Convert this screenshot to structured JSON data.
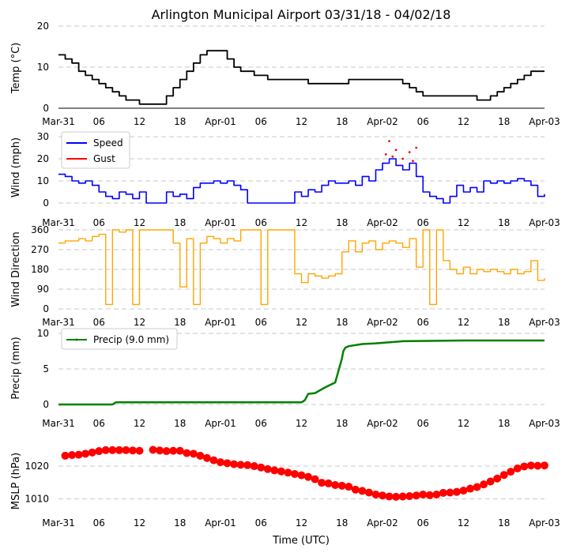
{
  "title": "Arlington Municipal Airport 03/31/18 - 04/02/18",
  "xlabel": "Time (UTC)",
  "x_ticks": [
    "Mar-31",
    "06",
    "12",
    "18",
    "Apr-01",
    "06",
    "12",
    "18",
    "Apr-02",
    "06",
    "12",
    "18",
    "Apr-03"
  ],
  "colors": {
    "temp": "#000000",
    "speed": "#0000ff",
    "gust": "#ff0000",
    "dir": "#ffa500",
    "precip": "#008000",
    "mslp": "#ff0000",
    "grid": "#c8c8c8"
  },
  "chart_data": [
    {
      "type": "line",
      "name": "temperature",
      "ylabel": "Temp ($^\\circ$C)",
      "ylabel_text": "Temp (°C)",
      "ylim": [
        0,
        20
      ],
      "yticks": [
        "0",
        "10",
        "20"
      ],
      "series": [
        {
          "name": "Temperature",
          "x_hours": [
            0,
            1,
            2,
            3,
            4,
            5,
            6,
            7,
            8,
            9,
            10,
            11,
            12,
            13,
            14,
            15,
            16,
            17,
            18,
            19,
            20,
            21,
            22,
            23,
            24,
            25,
            26,
            27,
            28,
            29,
            30,
            31,
            32,
            33,
            34,
            35,
            36,
            37,
            38,
            39,
            40,
            41,
            42,
            43,
            44,
            45,
            46,
            47,
            48,
            49,
            50,
            51,
            52,
            53,
            54,
            55,
            56,
            57,
            58,
            59,
            60,
            61,
            62,
            63,
            64,
            65,
            66,
            67,
            68,
            69,
            70,
            71,
            72
          ],
          "values": [
            13,
            12,
            11,
            9,
            8,
            7,
            6,
            5,
            4,
            3,
            2,
            2,
            1,
            1,
            1,
            1,
            3,
            5,
            7,
            9,
            11,
            13,
            14,
            14,
            14,
            12,
            10,
            9,
            9,
            8,
            8,
            7,
            7,
            7,
            7,
            7,
            7,
            6,
            6,
            6,
            6,
            6,
            6,
            7,
            7,
            7,
            7,
            7,
            7,
            7,
            7,
            6,
            5,
            4,
            3,
            3,
            3,
            3,
            3,
            3,
            3,
            3,
            2,
            2,
            3,
            4,
            5,
            6,
            7,
            8,
            9,
            9,
            9
          ]
        }
      ]
    },
    {
      "type": "line",
      "name": "wind",
      "ylabel": "Wind (mph)",
      "ylim": [
        0,
        30
      ],
      "yticks": [
        "0",
        "10",
        "20",
        "30"
      ],
      "legend": [
        "Speed",
        "Gust"
      ],
      "legend_position": "upper-left",
      "series": [
        {
          "name": "Speed",
          "x_hours": [
            0,
            1,
            2,
            3,
            4,
            5,
            6,
            7,
            8,
            9,
            10,
            11,
            12,
            13,
            14,
            15,
            16,
            17,
            18,
            19,
            20,
            21,
            22,
            23,
            24,
            25,
            26,
            27,
            28,
            29,
            30,
            31,
            32,
            33,
            34,
            35,
            36,
            37,
            38,
            39,
            40,
            41,
            42,
            43,
            44,
            45,
            46,
            47,
            48,
            49,
            50,
            51,
            52,
            53,
            54,
            55,
            56,
            57,
            58,
            59,
            60,
            61,
            62,
            63,
            64,
            65,
            66,
            67,
            68,
            69,
            70,
            71,
            72
          ],
          "values": [
            13,
            12,
            10,
            9,
            10,
            8,
            5,
            3,
            2,
            5,
            4,
            2,
            5,
            0,
            0,
            0,
            5,
            3,
            4,
            2,
            7,
            9,
            9,
            10,
            9,
            10,
            8,
            6,
            0,
            0,
            0,
            0,
            0,
            0,
            0,
            5,
            3,
            6,
            5,
            8,
            10,
            9,
            9,
            10,
            8,
            12,
            10,
            15,
            18,
            20,
            17,
            15,
            18,
            12,
            5,
            3,
            2,
            0,
            3,
            8,
            5,
            7,
            5,
            10,
            9,
            10,
            9,
            10,
            11,
            10,
            8,
            3,
            4
          ]
        },
        {
          "name": "Gust",
          "points": [
            [
              48.5,
              22
            ],
            [
              49,
              28
            ],
            [
              49.5,
              21
            ],
            [
              50,
              24
            ],
            [
              51,
              20
            ],
            [
              52,
              23
            ],
            [
              52.5,
              19
            ],
            [
              53,
              25
            ]
          ]
        }
      ]
    },
    {
      "type": "line",
      "name": "wind_direction",
      "ylabel": "Wind Direction",
      "ylim": [
        0,
        360
      ],
      "yticks": [
        "0",
        "90",
        "180",
        "270",
        "360"
      ],
      "series": [
        {
          "name": "Direction",
          "x_hours": [
            0,
            1,
            2,
            3,
            4,
            5,
            6,
            7,
            8,
            9,
            10,
            11,
            12,
            13,
            14,
            15,
            16,
            17,
            18,
            19,
            20,
            21,
            22,
            23,
            24,
            25,
            26,
            27,
            28,
            29,
            30,
            31,
            32,
            33,
            34,
            35,
            36,
            37,
            38,
            39,
            40,
            41,
            42,
            43,
            44,
            45,
            46,
            47,
            48,
            49,
            50,
            51,
            52,
            53,
            54,
            55,
            56,
            57,
            58,
            59,
            60,
            61,
            62,
            63,
            64,
            65,
            66,
            67,
            68,
            69,
            70,
            71,
            72
          ],
          "values": [
            300,
            310,
            310,
            320,
            310,
            330,
            340,
            20,
            360,
            350,
            360,
            20,
            360,
            360,
            360,
            360,
            360,
            300,
            100,
            320,
            20,
            300,
            330,
            320,
            300,
            320,
            310,
            360,
            360,
            360,
            20,
            360,
            360,
            360,
            360,
            160,
            120,
            160,
            150,
            140,
            150,
            160,
            260,
            310,
            260,
            300,
            310,
            270,
            300,
            310,
            300,
            280,
            320,
            190,
            360,
            20,
            360,
            220,
            180,
            160,
            190,
            160,
            180,
            170,
            180,
            170,
            160,
            180,
            160,
            170,
            220,
            130,
            140
          ]
        }
      ]
    },
    {
      "type": "line",
      "name": "precipitation",
      "ylabel": "Precip (mm)",
      "ylim": [
        0,
        10
      ],
      "yticks": [
        "0",
        "5",
        "10"
      ],
      "legend": [
        "Precip (9.0 mm)"
      ],
      "legend_position": "upper-left",
      "series": [
        {
          "name": "Precip (9.0 mm)",
          "x_hours": [
            0,
            8,
            8.5,
            36,
            36.5,
            37,
            38,
            39.5,
            41,
            42,
            42.2,
            42.5,
            43,
            45,
            47,
            51,
            60,
            72
          ],
          "values": [
            0,
            0,
            0.3,
            0.3,
            0.6,
            1.5,
            1.6,
            2.4,
            3.1,
            6.5,
            7.5,
            8.0,
            8.2,
            8.5,
            8.6,
            8.9,
            9.0,
            9.0
          ]
        }
      ]
    },
    {
      "type": "scatter",
      "name": "mslp",
      "ylabel": "MSLP (hPa)",
      "ylim": [
        1005,
        1028
      ],
      "yticks": [
        "1010",
        "1020"
      ],
      "series": [
        {
          "name": "MSLP",
          "x_hours": [
            1,
            2,
            3,
            4,
            5,
            6,
            7,
            8,
            9,
            10,
            11,
            12,
            14,
            15,
            16,
            17,
            18,
            19,
            20,
            21,
            22,
            23,
            24,
            25,
            26,
            27,
            28,
            29,
            30,
            31,
            32,
            33,
            34,
            35,
            36,
            37,
            38,
            39,
            40,
            41,
            42,
            43,
            44,
            45,
            46,
            47,
            48,
            49,
            50,
            51,
            52,
            53,
            54,
            55,
            56,
            57,
            58,
            59,
            60,
            61,
            62,
            63,
            64,
            65,
            66,
            67,
            68,
            69,
            70,
            71,
            72
          ],
          "values": [
            1023.2,
            1023.4,
            1023.5,
            1023.8,
            1024.2,
            1024.6,
            1024.9,
            1024.9,
            1024.9,
            1024.9,
            1024.8,
            1024.7,
            1025.0,
            1024.8,
            1024.6,
            1024.7,
            1024.7,
            1024.0,
            1023.8,
            1023.2,
            1022.5,
            1021.8,
            1021.2,
            1020.9,
            1020.6,
            1020.4,
            1020.3,
            1020.0,
            1019.6,
            1019.1,
            1018.7,
            1018.4,
            1018.0,
            1017.6,
            1017.2,
            1016.7,
            1016.0,
            1014.9,
            1014.7,
            1014.2,
            1014.0,
            1013.7,
            1012.8,
            1012.4,
            1011.9,
            1011.3,
            1011.0,
            1010.7,
            1010.6,
            1010.7,
            1010.8,
            1011.0,
            1011.3,
            1011.1,
            1011.3,
            1011.8,
            1011.9,
            1012.1,
            1012.5,
            1013.1,
            1013.6,
            1014.4,
            1015.3,
            1016.2,
            1017.3,
            1018.3,
            1019.3,
            1019.9,
            1020.2,
            1020.1,
            1020.2
          ]
        }
      ]
    }
  ]
}
